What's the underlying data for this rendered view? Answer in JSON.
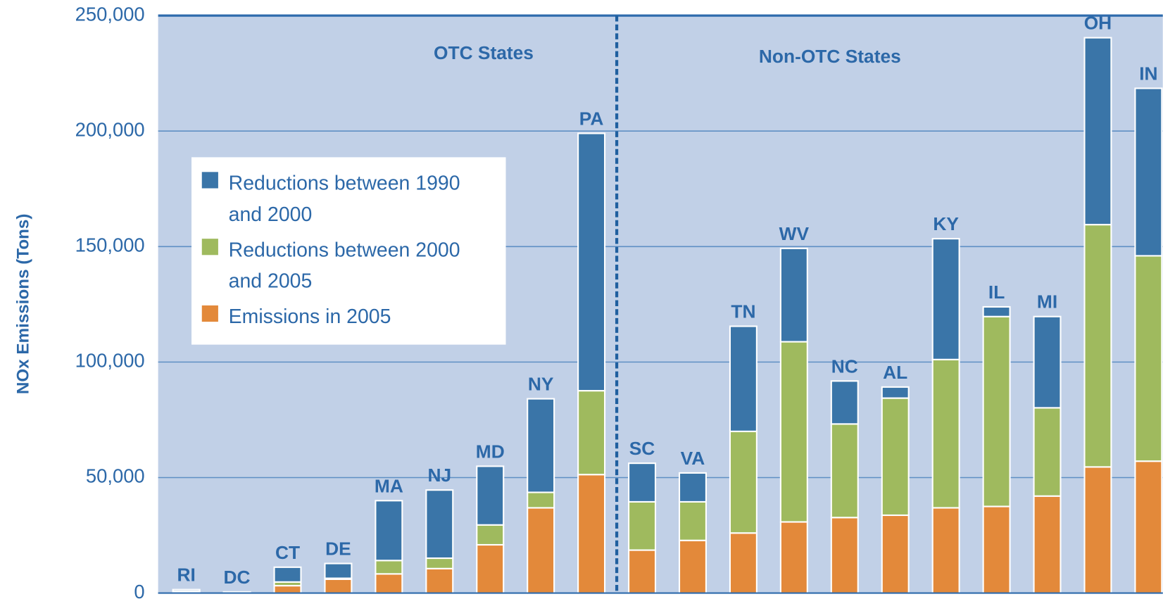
{
  "chart_data": {
    "type": "stacked_bar",
    "y_label": "NOx Emissions (Tons)",
    "annotations": [
      "OTC States",
      "Non-OTC States"
    ],
    "categories": [
      "RI",
      "DC",
      "CT",
      "DE",
      "MA",
      "NJ",
      "MD",
      "NY",
      "PA",
      "SC",
      "VA",
      "TN",
      "WV",
      "NC",
      "AL",
      "KY",
      "IL",
      "MI",
      "OH",
      "IN"
    ],
    "series": [
      {
        "name": "Emissions in 2005",
        "color": "#e3893a",
        "values": [
          500,
          300,
          3200,
          6000,
          8300,
          10600,
          20900,
          36900,
          51300,
          18600,
          22800,
          26000,
          30800,
          32700,
          33700,
          36900,
          37500,
          42000,
          54600,
          57100
        ]
      },
      {
        "name": "Reductions between 2000 and 2005",
        "color": "#9fba5e",
        "values": [
          300,
          100,
          1600,
          400,
          5800,
          4500,
          8600,
          6700,
          36300,
          20900,
          16700,
          44000,
          78000,
          40500,
          50700,
          64200,
          82200,
          38200,
          104900,
          88900
        ]
      },
      {
        "name": "Reductions between 1990 and 2000",
        "color": "#3a75a8",
        "values": [
          700,
          100,
          6400,
          6400,
          25900,
          29500,
          25400,
          40500,
          111400,
          16700,
          12500,
          45500,
          40400,
          18600,
          4800,
          52300,
          4200,
          39500,
          80900,
          72500
        ]
      }
    ],
    "ylim": [
      0,
      250000
    ],
    "yticks": [
      0,
      {
        "value": 50000,
        "label": "50,000"
      },
      {
        "value": 100000,
        "label": "100,000"
      },
      {
        "value": 150000,
        "label": "150,000"
      },
      {
        "value": 200000,
        "label": "200,000"
      },
      {
        "value": 250000,
        "label": "250,000"
      }
    ],
    "grid": true
  }
}
